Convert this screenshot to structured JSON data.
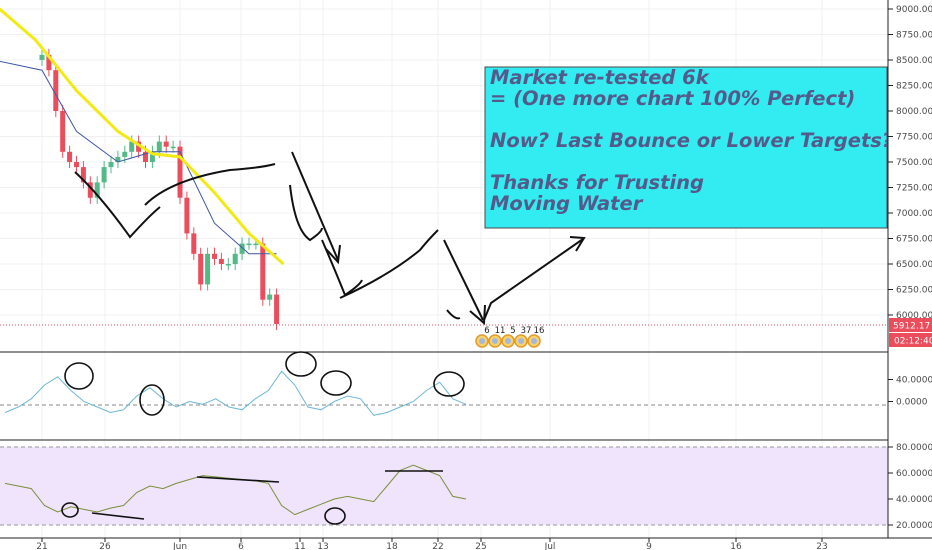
{
  "chart_data": [
    {
      "type": "candlestick",
      "title": "",
      "ylim": [
        5800,
        9150
      ],
      "y_ticks": [
        "9000.00",
        "8750.00",
        "8500.00",
        "8250.00",
        "8000.00",
        "7750.00",
        "7500.00",
        "7250.00",
        "7000.00",
        "6750.00",
        "6500.00",
        "6250.00",
        "6000.00"
      ],
      "x_ticks": [
        "21",
        "26",
        "Jun",
        "6",
        "11",
        "13",
        "18",
        "22",
        "25",
        "Jul",
        "9",
        "16",
        "23"
      ],
      "close_series": [
        {
          "x": "May 20",
          "y": 8500
        },
        {
          "x": "May 21",
          "y": 8550
        },
        {
          "x": "May 22",
          "y": 8400
        },
        {
          "x": "May 23",
          "y": 8000
        },
        {
          "x": "May 24",
          "y": 7600
        },
        {
          "x": "May 25",
          "y": 7500
        },
        {
          "x": "May 26",
          "y": 7450
        },
        {
          "x": "May 27",
          "y": 7300
        },
        {
          "x": "May 28",
          "y": 7150
        },
        {
          "x": "May 29",
          "y": 7300
        },
        {
          "x": "May 30",
          "y": 7450
        },
        {
          "x": "May 31",
          "y": 7500
        },
        {
          "x": "Jun 1",
          "y": 7550
        },
        {
          "x": "Jun 2",
          "y": 7600
        },
        {
          "x": "Jun 3",
          "y": 7700
        },
        {
          "x": "Jun 4",
          "y": 7600
        },
        {
          "x": "Jun 5",
          "y": 7500
        },
        {
          "x": "Jun 6",
          "y": 7600
        },
        {
          "x": "Jun 7",
          "y": 7700
        },
        {
          "x": "Jun 8",
          "y": 7650
        },
        {
          "x": "Jun 9",
          "y": 7650
        },
        {
          "x": "Jun 10",
          "y": 7150
        },
        {
          "x": "Jun 11",
          "y": 6800
        },
        {
          "x": "Jun 12",
          "y": 6600
        },
        {
          "x": "Jun 13",
          "y": 6300
        },
        {
          "x": "Jun 14",
          "y": 6600
        },
        {
          "x": "Jun 15",
          "y": 6550
        },
        {
          "x": "Jun 16",
          "y": 6500
        },
        {
          "x": "Jun 17",
          "y": 6500
        },
        {
          "x": "Jun 18",
          "y": 6600
        },
        {
          "x": "Jun 19",
          "y": 6700
        },
        {
          "x": "Jun 20",
          "y": 6700
        },
        {
          "x": "Jun 21",
          "y": 6700
        },
        {
          "x": "Jun 22",
          "y": 6150
        },
        {
          "x": "Jun 23",
          "y": 6200
        },
        {
          "x": "Jun 24",
          "y": 5912.17
        }
      ],
      "moving_average_yellow": [
        {
          "x": "May 14",
          "y": 9050
        },
        {
          "x": "May 20",
          "y": 8700
        },
        {
          "x": "May 26",
          "y": 8200
        },
        {
          "x": "Jun 1",
          "y": 7800
        },
        {
          "x": "Jun 6",
          "y": 7580
        },
        {
          "x": "Jun 10",
          "y": 7550
        },
        {
          "x": "Jun 15",
          "y": 7200
        },
        {
          "x": "Jun 20",
          "y": 6800
        },
        {
          "x": "Jun 25",
          "y": 6500
        }
      ],
      "moving_average_blue": [
        {
          "x": "May 14",
          "y": 8500
        },
        {
          "x": "May 21",
          "y": 8400
        },
        {
          "x": "May 26",
          "y": 7800
        },
        {
          "x": "Jun 1",
          "y": 7500
        },
        {
          "x": "Jun 6",
          "y": 7600
        },
        {
          "x": "Jun 10",
          "y": 7600
        },
        {
          "x": "Jun 15",
          "y": 6900
        },
        {
          "x": "Jun 20",
          "y": 6600
        },
        {
          "x": "Jun 24",
          "y": 6600
        }
      ],
      "last_price_label": "5912.17",
      "countdown_label": "02:12:40",
      "event_counts": [
        "6",
        "11",
        "5",
        "37",
        "16"
      ]
    },
    {
      "type": "line",
      "y_ticks": [
        "40.0000",
        "0.0000"
      ],
      "ylim": [
        -70,
        90
      ],
      "values": [
        -20,
        -10,
        5,
        30,
        45,
        20,
        0,
        -10,
        -20,
        -15,
        10,
        25,
        5,
        -10,
        0,
        -5,
        5,
        -10,
        -15,
        5,
        20,
        55,
        30,
        -10,
        -15,
        0,
        10,
        5,
        -25,
        -20,
        -10,
        0,
        20,
        35,
        5,
        -5
      ]
    },
    {
      "type": "line",
      "y_ticks": [
        "80.0000",
        "60.0000",
        "40.0000",
        "20.0000"
      ],
      "ylim": [
        20,
        80
      ],
      "upper_band": 80,
      "lower_band": 20,
      "values": [
        52,
        50,
        48,
        35,
        30,
        34,
        32,
        30,
        33,
        35,
        45,
        50,
        48,
        52,
        55,
        58,
        57,
        56,
        55,
        54,
        52,
        35,
        28,
        32,
        36,
        40,
        42,
        40,
        38,
        50,
        62,
        66,
        62,
        58,
        42,
        40
      ]
    }
  ],
  "annotation": {
    "lines": [
      "Market re-tested 6k",
      "= (One more chart 100% Perfect)",
      "",
      "Now? Last Bounce or Lower Targets?",
      "",
      "Thanks for Trusting",
      "Moving Water"
    ]
  },
  "colors": {
    "bull": "#53b987",
    "bear": "#eb4d5c",
    "ma_yellow": "#f2ea15",
    "ma_blue": "#3d57a6",
    "osc1": "#6fb7d6",
    "osc2": "#7b8e3c",
    "rsi_band": "#efe4fb",
    "annotation_bg": "#33ecf2",
    "price_label": "#eb4d5c"
  }
}
